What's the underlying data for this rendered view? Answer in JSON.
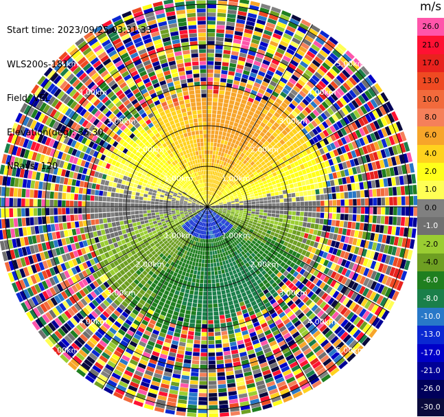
{
  "header": {
    "start_time": "Start time: 2023/09/25 03:31:33",
    "instrument": "WLS200s-181",
    "field": "Field: VEL",
    "elevation": "Elevation(deg): 35.30",
    "nrays": "NRays: 120"
  },
  "colorbar": {
    "unit": "m/s",
    "bins": [
      {
        "label": "26.0",
        "color": "#ff55aa",
        "text": "#000000"
      },
      {
        "label": "21.0",
        "color": "#ff1133",
        "text": "#000000"
      },
      {
        "label": "17.0",
        "color": "#e8221e",
        "text": "#000000"
      },
      {
        "label": "13.0",
        "color": "#ef4a22",
        "text": "#000000"
      },
      {
        "label": "10.0",
        "color": "#f26a3c",
        "text": "#000000"
      },
      {
        "label": "8.0",
        "color": "#f5805a",
        "text": "#000000"
      },
      {
        "label": "6.0",
        "color": "#f7a52a",
        "text": "#000000"
      },
      {
        "label": "4.0",
        "color": "#ffd21e",
        "text": "#000000"
      },
      {
        "label": "2.0",
        "color": "#ffff1a",
        "text": "#000000"
      },
      {
        "label": "1.0",
        "color": "#ffff55",
        "text": "#000000"
      },
      {
        "label": "0.0",
        "color": "#808080",
        "text": "#000000"
      },
      {
        "label": "-1.0",
        "color": "#707070",
        "text": "#ffffff"
      },
      {
        "label": "-2.0",
        "color": "#9acd32",
        "text": "#000000"
      },
      {
        "label": "-4.0",
        "color": "#6e9f22",
        "text": "#000000"
      },
      {
        "label": "-6.0",
        "color": "#1f7f1f",
        "text": "#ffffff"
      },
      {
        "label": "-8.0",
        "color": "#1a7f4a",
        "text": "#ffffff"
      },
      {
        "label": "-10.0",
        "color": "#2878c8",
        "text": "#ffffff"
      },
      {
        "label": "-13.0",
        "color": "#0a28d2",
        "text": "#ffffff"
      },
      {
        "label": "-17.0",
        "color": "#0000c8",
        "text": "#ffffff"
      },
      {
        "label": "-21.0",
        "color": "#000096",
        "text": "#ffffff"
      },
      {
        "label": "-26.0",
        "color": "#00005a",
        "text": "#ffffff"
      },
      {
        "label": "-30.0",
        "color": "#0a0a3c",
        "text": "#ffffff"
      }
    ]
  },
  "chart_data": {
    "type": "heatmap",
    "projection": "polar_ppi",
    "field": "VEL",
    "units": "m/s",
    "nrays": 120,
    "range_rings_km": [
      1.0,
      2.0,
      3.0,
      4.0,
      5.0
    ],
    "ring_labels": [
      "1.00km",
      "2.00km",
      "3.00km",
      "4.00km",
      "5.00km"
    ],
    "max_range_km": 5.2,
    "spoke_angles_deg": [
      0,
      30,
      60,
      90,
      120,
      150,
      180,
      210,
      240,
      270,
      300,
      330
    ],
    "coherent_range_km": 2.8,
    "pattern": "dipole: positive (orange/yellow, ~4-8 m/s) to the north, negative (green, ~-4 to -8 m/s) to the south, near-zero grey band east-west; noisy random values beyond ~3 km"
  }
}
